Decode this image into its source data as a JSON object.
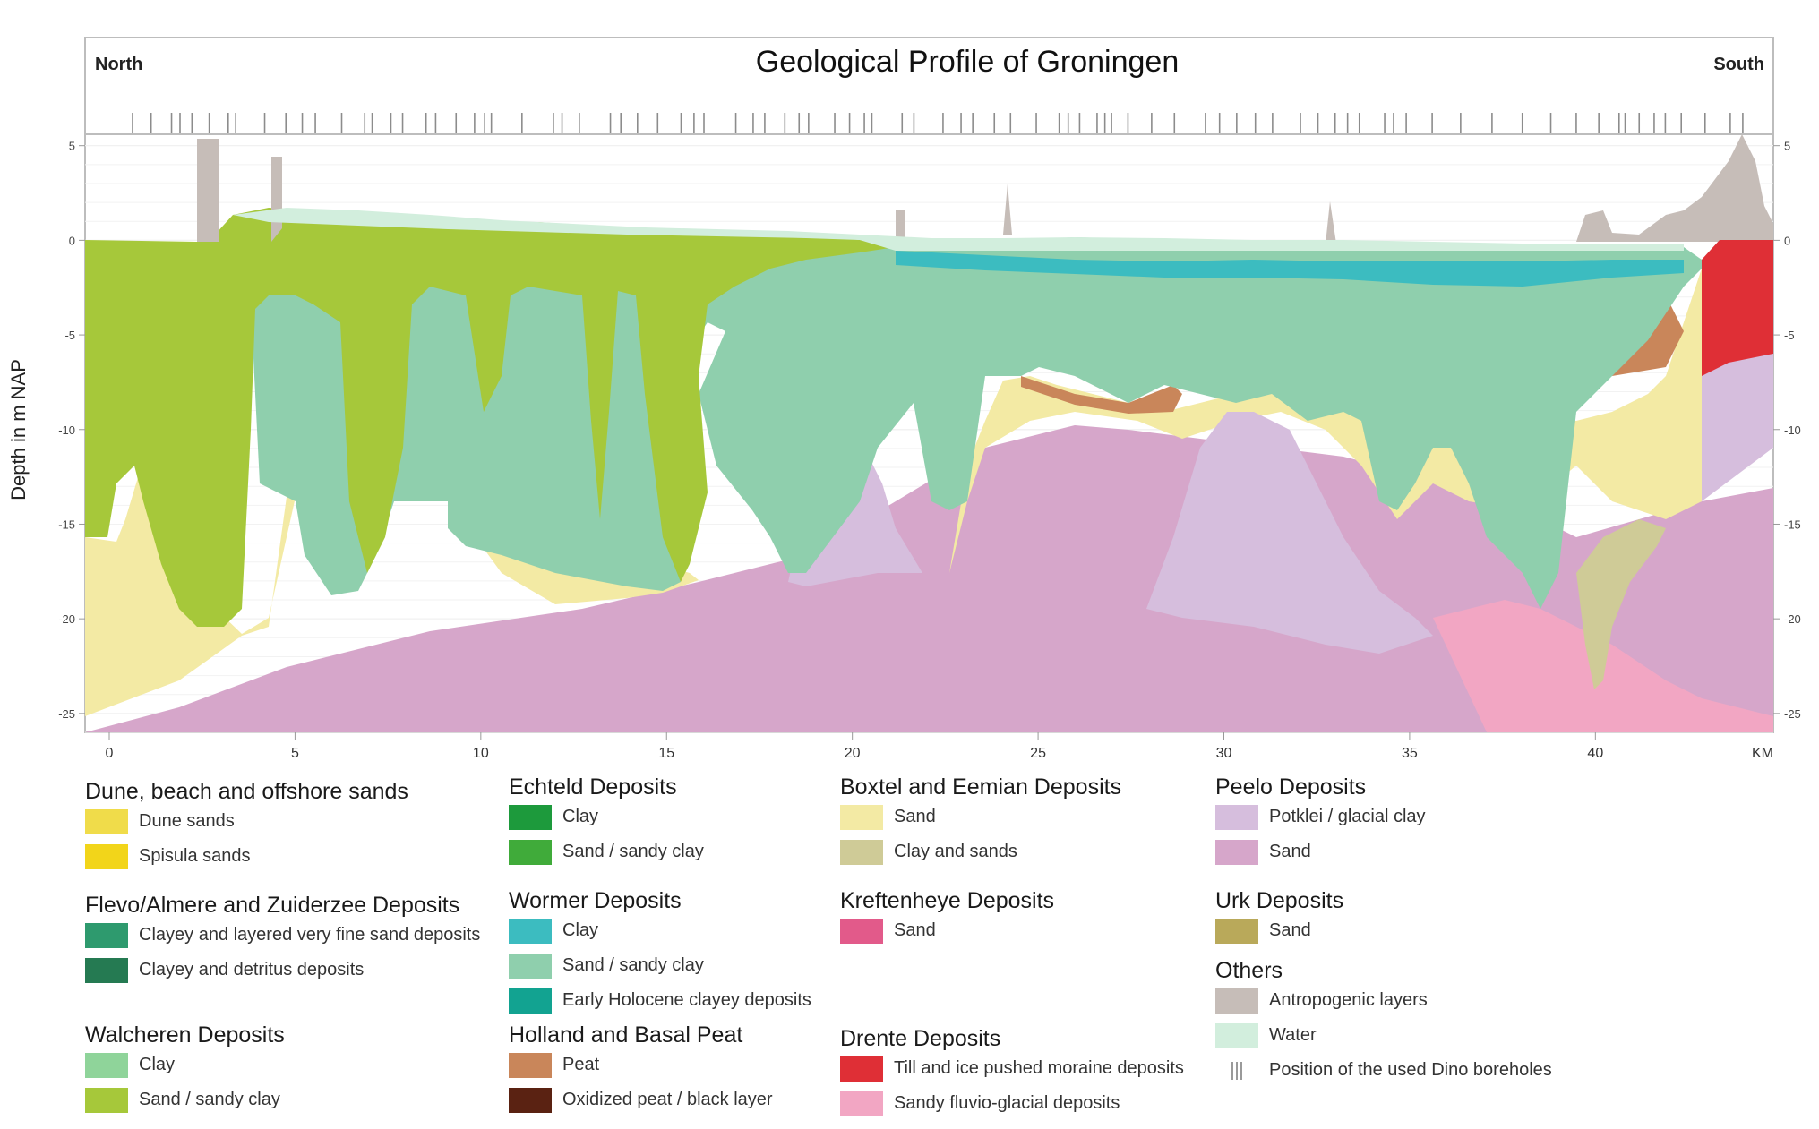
{
  "title": "Geological Profile of Groningen",
  "orientation": {
    "left": "North",
    "right": "South"
  },
  "axes": {
    "ylabel": "Depth in m NAP",
    "y_ticks": [
      "5",
      "0",
      "-5",
      "-10",
      "-15",
      "-20",
      "-25"
    ],
    "x_ticks": [
      "0",
      "5",
      "10",
      "15",
      "20",
      "25",
      "30",
      "35",
      "40"
    ],
    "x_unit": "KM",
    "xlim": [
      0,
      44.5
    ],
    "ylim": [
      -26,
      5.6
    ]
  },
  "colors": {
    "dune_sands": "#f0dc4a",
    "spisula_sands": "#f2d51a",
    "flevo_clayey_fine_sand": "#2e9a6e",
    "flevo_clayey_detritus": "#257a52",
    "walcheren_clay": "#8fd49a",
    "walcheren_sand": "#a6c83a",
    "echteld_clay": "#1d9a3c",
    "echteld_sand": "#40ab3a",
    "wormer_clay": "#3cbcc0",
    "wormer_sand": "#8fcfad",
    "wormer_early_holocene": "#12a391",
    "holland_peat": "#c9865a",
    "holland_oxidized_peat": "#5a2212",
    "boxtel_sand": "#f3eaa4",
    "boxtel_clay_sands": "#cfcb97",
    "kreftenheye_sand": "#e25a8a",
    "drente_till": "#df2f36",
    "drente_fluvio": "#f2a6c3",
    "peelo_potklei": "#d6bedd",
    "peelo_sand": "#d6a6ca",
    "urk_sand": "#b9a95a",
    "antropogenic": "#c6bdb8",
    "water": "#d2eedd",
    "boreholes": "#9a9a9a"
  },
  "legend": [
    {
      "title": "Dune, beach and offshore sands",
      "items": [
        {
          "label": "Dune sands",
          "color_key": "dune_sands"
        },
        {
          "label": "Spisula sands",
          "color_key": "spisula_sands"
        }
      ]
    },
    {
      "title": "Flevo/Almere and Zuiderzee Deposits",
      "items": [
        {
          "label": "Clayey and layered very fine sand deposits",
          "color_key": "flevo_clayey_fine_sand"
        },
        {
          "label": "Clayey and detritus deposits",
          "color_key": "flevo_clayey_detritus"
        }
      ]
    },
    {
      "title": "Walcheren Deposits",
      "items": [
        {
          "label": "Clay",
          "color_key": "walcheren_clay"
        },
        {
          "label": "Sand / sandy clay",
          "color_key": "walcheren_sand"
        }
      ]
    },
    {
      "title": "Echteld Deposits",
      "items": [
        {
          "label": "Clay",
          "color_key": "echteld_clay"
        },
        {
          "label": "Sand / sandy clay",
          "color_key": "echteld_sand"
        }
      ]
    },
    {
      "title": "Wormer Deposits",
      "items": [
        {
          "label": "Clay",
          "color_key": "wormer_clay"
        },
        {
          "label": "Sand / sandy clay",
          "color_key": "wormer_sand"
        },
        {
          "label": "Early Holocene clayey deposits",
          "color_key": "wormer_early_holocene"
        }
      ]
    },
    {
      "title": "Holland and Basal Peat",
      "items": [
        {
          "label": "Peat",
          "color_key": "holland_peat"
        },
        {
          "label": "Oxidized peat / black layer",
          "color_key": "holland_oxidized_peat"
        }
      ]
    },
    {
      "title": "Boxtel and Eemian Deposits",
      "items": [
        {
          "label": "Sand",
          "color_key": "boxtel_sand"
        },
        {
          "label": "Clay and sands",
          "color_key": "boxtel_clay_sands"
        }
      ]
    },
    {
      "title": "Kreftenheye Deposits",
      "items": [
        {
          "label": "Sand",
          "color_key": "kreftenheye_sand"
        }
      ]
    },
    {
      "title": "Drente Deposits",
      "items": [
        {
          "label": "Till and ice pushed moraine deposits",
          "color_key": "drente_till"
        },
        {
          "label": "Sandy fluvio-glacial deposits",
          "color_key": "drente_fluvio"
        }
      ]
    },
    {
      "title": "Peelo Deposits",
      "items": [
        {
          "label": "Potklei / glacial clay",
          "color_key": "peelo_potklei"
        },
        {
          "label": "Sand",
          "color_key": "peelo_sand"
        }
      ]
    },
    {
      "title": "Urk Deposits",
      "items": [
        {
          "label": "Sand",
          "color_key": "urk_sand"
        }
      ]
    },
    {
      "title": "Others",
      "items": [
        {
          "label": "Antropogenic layers",
          "color_key": "antropogenic"
        },
        {
          "label": "Water",
          "color_key": "water"
        },
        {
          "label": "Position of the used Dino boreholes",
          "color_key": "boreholes",
          "marker": "tick"
        }
      ]
    }
  ]
}
